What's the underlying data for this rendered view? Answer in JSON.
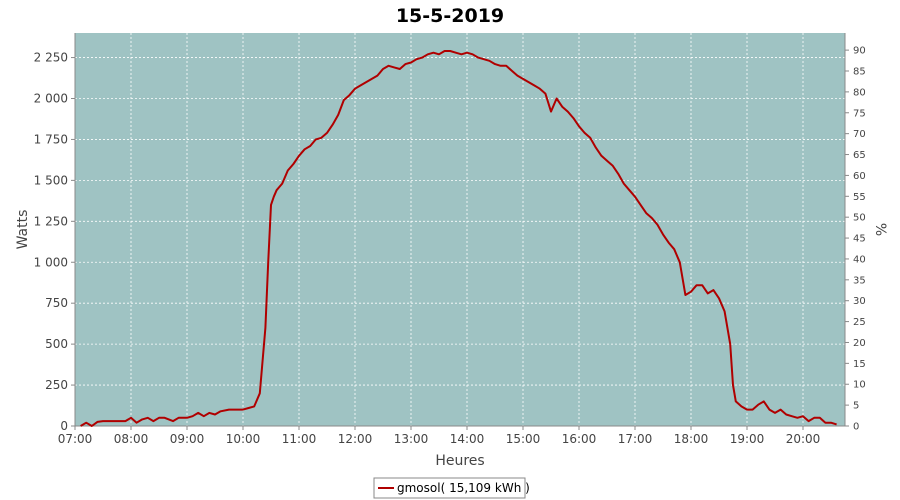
{
  "chart_data": {
    "type": "line",
    "title": "15-5-2019",
    "xlabel": "Heures",
    "ylabel": "Watts",
    "ylabel_right": "%",
    "xlim": [
      7.0,
      20.75
    ],
    "ylim": [
      0,
      2400
    ],
    "ylim_right": [
      0,
      94.1
    ],
    "x_ticks": [
      "07:00",
      "08:00",
      "09:00",
      "10:00",
      "11:00",
      "12:00",
      "13:00",
      "14:00",
      "15:00",
      "16:00",
      "17:00",
      "18:00",
      "19:00",
      "20:00"
    ],
    "y_ticks": [
      "0",
      "250",
      "500",
      "750",
      "1 000",
      "1 250",
      "1 500",
      "1 750",
      "2 000",
      "2 250"
    ],
    "y_ticks_right": [
      "0",
      "5",
      "10",
      "15",
      "20",
      "25",
      "30",
      "35",
      "40",
      "45",
      "50",
      "55",
      "60",
      "65",
      "70",
      "75",
      "80",
      "85",
      "90"
    ],
    "grid": true,
    "legend_position": "bottom-center",
    "colors": {
      "series": "#b00000",
      "plot_bg": "#9fc3c3",
      "grid": "#ffffff"
    },
    "series": [
      {
        "name": "gmosol( 15,109 kWh )",
        "x": [
          7.1,
          7.2,
          7.3,
          7.4,
          7.5,
          7.7,
          7.9,
          8.0,
          8.1,
          8.2,
          8.3,
          8.4,
          8.5,
          8.6,
          8.75,
          8.85,
          9.0,
          9.1,
          9.2,
          9.3,
          9.4,
          9.5,
          9.6,
          9.75,
          9.9,
          10.0,
          10.1,
          10.2,
          10.3,
          10.4,
          10.45,
          10.5,
          10.55,
          10.6,
          10.65,
          10.7,
          10.8,
          10.9,
          11.0,
          11.1,
          11.2,
          11.3,
          11.4,
          11.5,
          11.6,
          11.7,
          11.8,
          11.9,
          12.0,
          12.1,
          12.2,
          12.3,
          12.4,
          12.5,
          12.6,
          12.7,
          12.8,
          12.9,
          13.0,
          13.1,
          13.2,
          13.3,
          13.4,
          13.5,
          13.6,
          13.7,
          13.8,
          13.9,
          14.0,
          14.1,
          14.2,
          14.3,
          14.4,
          14.5,
          14.6,
          14.7,
          14.8,
          14.9,
          15.0,
          15.1,
          15.2,
          15.3,
          15.4,
          15.5,
          15.6,
          15.7,
          15.8,
          15.9,
          16.0,
          16.1,
          16.2,
          16.3,
          16.4,
          16.5,
          16.6,
          16.7,
          16.8,
          16.9,
          17.0,
          17.1,
          17.2,
          17.3,
          17.4,
          17.5,
          17.6,
          17.7,
          17.8,
          17.9,
          18.0,
          18.1,
          18.2,
          18.3,
          18.4,
          18.5,
          18.6,
          18.7,
          18.75,
          18.8,
          18.9,
          19.0,
          19.1,
          19.2,
          19.3,
          19.4,
          19.5,
          19.6,
          19.7,
          19.8,
          19.9,
          20.0,
          20.1,
          20.2,
          20.3,
          20.4,
          20.5,
          20.6
        ],
        "y": [
          0,
          20,
          0,
          25,
          30,
          30,
          30,
          50,
          20,
          40,
          50,
          30,
          50,
          50,
          30,
          50,
          50,
          60,
          80,
          60,
          80,
          70,
          90,
          100,
          100,
          100,
          110,
          120,
          200,
          600,
          1000,
          1350,
          1400,
          1440,
          1460,
          1480,
          1560,
          1600,
          1650,
          1690,
          1710,
          1750,
          1760,
          1790,
          1840,
          1900,
          1990,
          2020,
          2060,
          2080,
          2100,
          2120,
          2140,
          2180,
          2200,
          2190,
          2180,
          2210,
          2220,
          2240,
          2250,
          2270,
          2280,
          2270,
          2290,
          2290,
          2280,
          2270,
          2280,
          2270,
          2250,
          2240,
          2230,
          2210,
          2200,
          2200,
          2170,
          2140,
          2120,
          2100,
          2080,
          2060,
          2030,
          1920,
          2000,
          1950,
          1920,
          1880,
          1830,
          1790,
          1760,
          1700,
          1650,
          1620,
          1590,
          1540,
          1480,
          1440,
          1400,
          1350,
          1300,
          1270,
          1230,
          1170,
          1120,
          1080,
          1000,
          800,
          820,
          860,
          860,
          810,
          830,
          780,
          700,
          500,
          250,
          150,
          120,
          100,
          100,
          130,
          150,
          100,
          80,
          100,
          70,
          60,
          50,
          60,
          30,
          50,
          50,
          20,
          20,
          10
        ]
      }
    ]
  }
}
